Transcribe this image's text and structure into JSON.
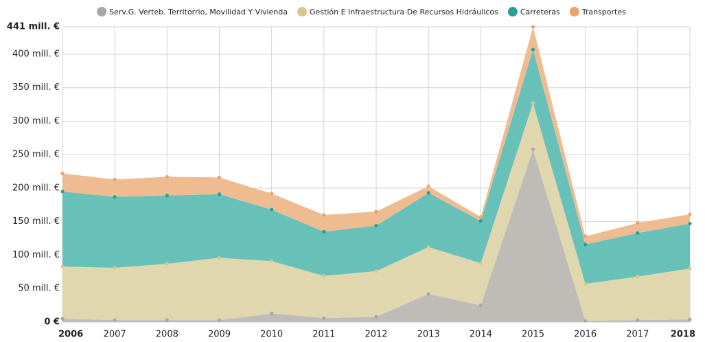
{
  "chart_data": {
    "type": "stacked_area",
    "categories": [
      "2006",
      "2007",
      "2008",
      "2009",
      "2010",
      "2011",
      "2012",
      "2013",
      "2014",
      "2015",
      "2016",
      "2017",
      "2018"
    ],
    "series": [
      {
        "name": "Serv.G. Verteb. Territorrio, Movilidad Y Vivienda",
        "color": "#bfbcb8",
        "marker_color": "#aaa7a3",
        "values": [
          5,
          3,
          3,
          3,
          13,
          6,
          8,
          42,
          25,
          258,
          2,
          3,
          4
        ]
      },
      {
        "name": "Gestión E Infraestructura De Recursos Hidráulicos",
        "color": "#e1d7ae",
        "marker_color": "#d6c98f",
        "values": [
          78,
          78,
          84,
          93,
          78,
          63,
          68,
          70,
          63,
          69,
          55,
          65,
          76
        ]
      },
      {
        "name": "Carreteras",
        "color": "#67c1b9",
        "marker_color": "#2a9e95",
        "values": [
          112,
          106,
          102,
          95,
          77,
          66,
          68,
          81,
          63,
          80,
          59,
          65,
          67
        ]
      },
      {
        "name": "Transportes",
        "color": "#efbc92",
        "marker_color": "#eba36c",
        "values": [
          27,
          26,
          28,
          25,
          24,
          25,
          21,
          10,
          6,
          34,
          12,
          15,
          14
        ]
      }
    ],
    "ylim": [
      0,
      441
    ],
    "yticks": [
      {
        "value": 0,
        "label": "0 €"
      },
      {
        "value": 50,
        "label": "50 mill. €"
      },
      {
        "value": 100,
        "label": "100 mill. €"
      },
      {
        "value": 150,
        "label": "150 mill. €"
      },
      {
        "value": 200,
        "label": "200 mill. €"
      },
      {
        "value": 250,
        "label": "250 mill. €"
      },
      {
        "value": 300,
        "label": "300 mill. €"
      },
      {
        "value": 350,
        "label": "350 mill. €"
      },
      {
        "value": 400,
        "label": "400 mill. €"
      },
      {
        "value": 441,
        "label": "441 mill. €"
      }
    ],
    "grid": true,
    "legend": "top"
  }
}
